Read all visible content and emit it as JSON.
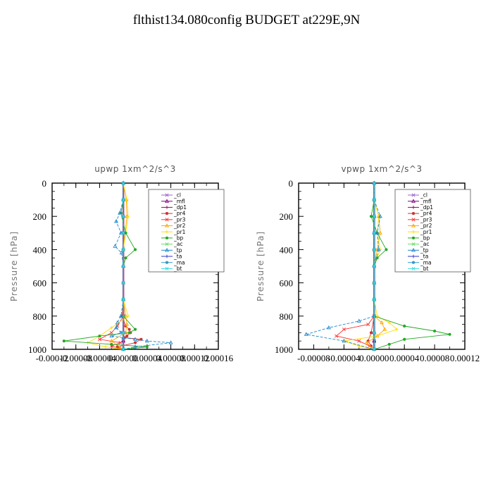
{
  "page": {
    "title": "flthist134.080config  BUDGET at229E,9N"
  },
  "chart_data": [
    {
      "type": "line",
      "title": "upwp   1xm^2/s^3",
      "ylabel": "Pressure [hPa]",
      "xlim": [
        -0.00012,
        0.00016
      ],
      "ylim": [
        0,
        1000
      ],
      "y_inverted": true,
      "xticks": [
        -0.00012,
        -8e-05,
        -4e-05,
        0.0,
        4e-05,
        8e-05,
        0.00012,
        0.00016
      ],
      "xtick_labels": [
        "-0.00012",
        "-0.00008",
        "-0.00004",
        "0.00000",
        "0.00004",
        "0.00008",
        "0.00012",
        "0.00016"
      ],
      "yticks": [
        0,
        200,
        400,
        600,
        800,
        1000
      ],
      "ytick_labels": [
        "0",
        "200",
        "400",
        "600",
        "800",
        "1000"
      ],
      "legend_position": "top-right",
      "series": [
        {
          "name": "_cl",
          "color": "#9966cc",
          "x": [
            0,
            0,
            0,
            0,
            0,
            0,
            0,
            0,
            0,
            0,
            0,
            0
          ],
          "y": [
            0,
            100,
            200,
            300,
            400,
            500,
            600,
            700,
            800,
            900,
            950,
            1000
          ]
        },
        {
          "name": "_mfl",
          "color": "#800080",
          "x": [
            0,
            0,
            0,
            0,
            0,
            0,
            0,
            0,
            0,
            0,
            0,
            0
          ],
          "y": [
            0,
            100,
            200,
            300,
            400,
            500,
            600,
            700,
            800,
            900,
            950,
            1000
          ]
        },
        {
          "name": "_dp1",
          "color": "#990066",
          "x": [
            0,
            0,
            0,
            0,
            0,
            0,
            0,
            0,
            0,
            0,
            0,
            0
          ],
          "y": [
            0,
            100,
            200,
            300,
            400,
            500,
            600,
            700,
            800,
            900,
            950,
            1000
          ]
        },
        {
          "name": "_pr4",
          "color": "#cc3333",
          "x": [
            0,
            0,
            0,
            0,
            0,
            0,
            0,
            0,
            -2e-06,
            4e-06,
            1e-05,
            1.2e-05,
            6e-06,
            2e-06,
            3e-05,
            2e-05,
            -1e-05,
            0
          ],
          "y": [
            0,
            100,
            200,
            300,
            400,
            500,
            600,
            700,
            800,
            860,
            880,
            900,
            920,
            930,
            940,
            960,
            985,
            1000
          ]
        },
        {
          "name": "_pr3",
          "color": "#ff3333",
          "x": [
            0,
            0,
            0,
            0,
            0,
            0,
            0,
            0,
            0,
            -1e-05,
            -2e-05,
            -4e-05,
            -5e-06,
            -2e-05,
            0
          ],
          "y": [
            0,
            100,
            200,
            300,
            400,
            500,
            600,
            700,
            800,
            860,
            900,
            940,
            960,
            980,
            1000
          ]
        },
        {
          "name": "_pr2",
          "color": "#ffaa00",
          "x": [
            0,
            5e-06,
            6e-06,
            3e-06,
            0,
            0,
            0,
            0,
            4e-06,
            6e-06,
            4e-06,
            -2e-05,
            0
          ],
          "y": [
            0,
            100,
            200,
            300,
            400,
            500,
            600,
            700,
            800,
            850,
            900,
            950,
            1000
          ]
        },
        {
          "name": "_pr1",
          "color": "#ffdd00",
          "x": [
            0,
            6e-06,
            8e-06,
            4e-06,
            0,
            0,
            0,
            0,
            8e-06,
            -2e-05,
            -4e-05,
            -6e-05,
            -3e-05,
            0
          ],
          "y": [
            0,
            100,
            200,
            300,
            400,
            500,
            600,
            700,
            800,
            870,
            920,
            960,
            985,
            1000
          ]
        },
        {
          "name": "_bp",
          "color": "#22aa22",
          "x": [
            0,
            0,
            -4e-06,
            4e-06,
            2e-05,
            4e-06,
            0,
            0,
            0,
            2e-05,
            1e-05,
            -4e-05,
            -0.0001,
            -2e-05,
            4e-05,
            0
          ],
          "y": [
            0,
            100,
            180,
            300,
            400,
            450,
            500,
            700,
            800,
            880,
            900,
            920,
            950,
            970,
            985,
            1000
          ]
        },
        {
          "name": "_ac",
          "color": "#66dd66",
          "x": [
            0,
            0,
            0,
            0,
            0,
            0,
            0,
            0,
            0,
            0
          ],
          "y": [
            0,
            100,
            200,
            300,
            400,
            500,
            600,
            700,
            900,
            1000
          ]
        },
        {
          "name": "_tp",
          "color": "#1e88cc",
          "x": [
            0,
            0,
            -6e-06,
            -1.2e-05,
            -4e-06,
            -1.4e-05,
            -3e-06,
            0,
            0,
            -4e-06,
            -1e-05,
            -1.2e-05,
            -4e-06,
            -2e-05,
            0,
            2e-05,
            4e-05,
            8e-05,
            2e-05,
            0
          ],
          "y": [
            0,
            100,
            180,
            230,
            300,
            380,
            420,
            500,
            700,
            800,
            840,
            870,
            900,
            920,
            930,
            940,
            950,
            960,
            985,
            1000
          ]
        },
        {
          "name": "_ta",
          "color": "#3333cc",
          "x": [
            0,
            0,
            0,
            0,
            0,
            0,
            0,
            0,
            0,
            0
          ],
          "y": [
            0,
            100,
            200,
            300,
            400,
            500,
            600,
            700,
            900,
            1000
          ]
        },
        {
          "name": "_ma",
          "color": "#3399cc",
          "x": [
            0,
            0,
            0,
            0,
            0,
            0,
            0,
            0,
            0,
            0
          ],
          "y": [
            0,
            100,
            200,
            300,
            400,
            500,
            600,
            700,
            900,
            1000
          ]
        },
        {
          "name": "_bt",
          "color": "#33dddd",
          "x": [
            0,
            0,
            0,
            0,
            0,
            0,
            0,
            0,
            0,
            0
          ],
          "y": [
            0,
            100,
            200,
            300,
            400,
            500,
            600,
            700,
            900,
            1000
          ]
        }
      ]
    },
    {
      "type": "line",
      "title": "vpwp   1xm^2/s^3",
      "ylabel": "Pressure [hPa]",
      "xlim": [
        -0.0001,
        0.00012
      ],
      "ylim": [
        0,
        1000
      ],
      "y_inverted": true,
      "xticks": [
        -8e-05,
        -4e-05,
        0.0,
        4e-05,
        8e-05,
        0.00012
      ],
      "xtick_labels": [
        "-0.00008",
        "-0.00004",
        "0.00000",
        "0.00004",
        "0.00008",
        "0.00012"
      ],
      "yticks": [
        0,
        200,
        400,
        600,
        800,
        1000
      ],
      "ytick_labels": [
        "0",
        "200",
        "400",
        "600",
        "800",
        "1000"
      ],
      "legend_position": "top-right",
      "series": [
        {
          "name": "_cl",
          "color": "#9966cc",
          "x": [
            0,
            0,
            0,
            0,
            0,
            0,
            0,
            0,
            0,
            0,
            0,
            0
          ],
          "y": [
            0,
            100,
            200,
            300,
            400,
            500,
            600,
            700,
            800,
            900,
            950,
            1000
          ]
        },
        {
          "name": "_mfl",
          "color": "#800080",
          "x": [
            0,
            0,
            0,
            0,
            0,
            0,
            0,
            0,
            0,
            0,
            0,
            0
          ],
          "y": [
            0,
            100,
            200,
            300,
            400,
            500,
            600,
            700,
            800,
            900,
            950,
            1000
          ]
        },
        {
          "name": "_dp1",
          "color": "#990066",
          "x": [
            0,
            0,
            0,
            0,
            0,
            0,
            0,
            0,
            0,
            0,
            0,
            0
          ],
          "y": [
            0,
            100,
            200,
            300,
            400,
            500,
            600,
            700,
            800,
            900,
            950,
            1000
          ]
        },
        {
          "name": "_pr4",
          "color": "#cc3333",
          "x": [
            0,
            0,
            0,
            0,
            0,
            0,
            0,
            0,
            0,
            -4e-06,
            -8e-06,
            -4e-06,
            0
          ],
          "y": [
            0,
            100,
            200,
            300,
            400,
            500,
            600,
            700,
            800,
            900,
            950,
            980,
            1000
          ]
        },
        {
          "name": "_pr3",
          "color": "#ff3333",
          "x": [
            0,
            0,
            0,
            0,
            0,
            0,
            0,
            0,
            0,
            -8e-06,
            -4e-05,
            -5e-05,
            -2e-05,
            -6e-06,
            0
          ],
          "y": [
            0,
            100,
            200,
            300,
            400,
            500,
            600,
            700,
            800,
            850,
            880,
            920,
            950,
            980,
            1000
          ]
        },
        {
          "name": "_pr2",
          "color": "#ffaa00",
          "x": [
            0,
            0,
            6e-06,
            8e-06,
            4e-06,
            0,
            0,
            0,
            0,
            1e-05,
            1.4e-05,
            4e-06,
            -1e-05,
            0
          ],
          "y": [
            0,
            100,
            200,
            300,
            400,
            500,
            600,
            700,
            800,
            840,
            880,
            920,
            960,
            1000
          ]
        },
        {
          "name": "_pr1",
          "color": "#ffdd00",
          "x": [
            0,
            0,
            6e-06,
            4e-06,
            8e-06,
            0,
            0,
            0,
            4e-06,
            2e-05,
            3e-05,
            4e-06,
            -4e-05,
            -2e-05,
            0
          ],
          "y": [
            0,
            100,
            200,
            300,
            400,
            500,
            600,
            700,
            800,
            840,
            880,
            920,
            950,
            980,
            1000
          ]
        },
        {
          "name": "_bp",
          "color": "#22aa22",
          "x": [
            0,
            0,
            -4e-06,
            4e-06,
            1.6e-05,
            4e-06,
            0,
            0,
            0,
            4e-05,
            8e-05,
            0.0001,
            4e-05,
            2e-05,
            0
          ],
          "y": [
            0,
            100,
            200,
            300,
            400,
            450,
            500,
            700,
            800,
            860,
            890,
            910,
            940,
            970,
            1000
          ]
        },
        {
          "name": "_ac",
          "color": "#66dd66",
          "x": [
            0,
            0,
            0,
            0,
            0,
            0,
            0,
            0,
            0,
            0
          ],
          "y": [
            0,
            100,
            200,
            300,
            400,
            500,
            600,
            700,
            900,
            1000
          ]
        },
        {
          "name": "_tp",
          "color": "#1e88cc",
          "x": [
            0,
            0,
            8e-06,
            4e-06,
            6e-06,
            0,
            0,
            0,
            0,
            -2e-05,
            -6e-05,
            -9e-05,
            -4e-05,
            0
          ],
          "y": [
            0,
            100,
            200,
            300,
            400,
            500,
            600,
            700,
            800,
            830,
            870,
            910,
            950,
            1000
          ]
        },
        {
          "name": "_ta",
          "color": "#3333cc",
          "x": [
            0,
            0,
            0,
            0,
            0,
            0,
            0,
            0,
            0,
            0
          ],
          "y": [
            0,
            100,
            200,
            300,
            400,
            500,
            600,
            700,
            900,
            1000
          ]
        },
        {
          "name": "_ma",
          "color": "#3399cc",
          "x": [
            0,
            0,
            0,
            0,
            0,
            0,
            0,
            0,
            0,
            0
          ],
          "y": [
            0,
            100,
            200,
            300,
            400,
            500,
            600,
            700,
            900,
            1000
          ]
        },
        {
          "name": "_bt",
          "color": "#33dddd",
          "x": [
            0,
            0,
            0,
            0,
            0,
            0,
            0,
            0,
            0,
            0
          ],
          "y": [
            0,
            100,
            200,
            300,
            400,
            500,
            600,
            700,
            900,
            1000
          ]
        }
      ]
    }
  ]
}
